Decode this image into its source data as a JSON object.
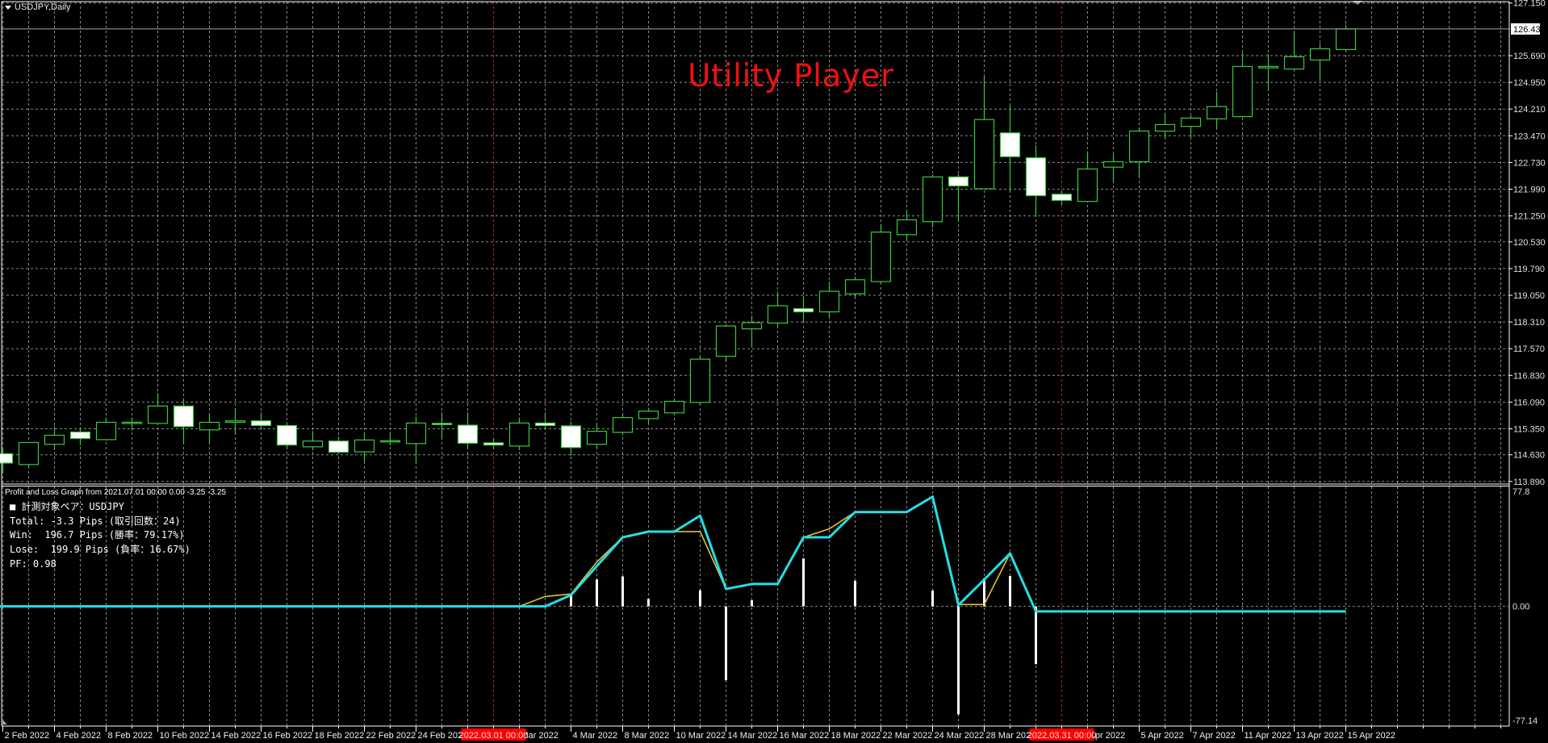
{
  "window": {
    "symbol_title": "USDJPY,Daily",
    "overlay_text": "Utility Player"
  },
  "colors": {
    "background": "#000000",
    "bull_outline": "#3cc83c",
    "bear_fill": "#ffffff",
    "grid": "#8a8a8a",
    "period_separator": "#c02020",
    "pnl_line": "#22e0e6",
    "pnl_line_alt": "#e8c030",
    "pnl_bars": "#ffffff",
    "overlay_text": "#ee1111"
  },
  "pnl_panel": {
    "header": "Profit and Loss Graph from 2021.07.01 00:00 0.00 -3.25 -3.25",
    "lines": [
      "■ 計測対象ペア：USDJPY",
      "Total: -3.3 Pips (取引回数：24)",
      "Win:  196.7 Pips (勝率：79.17%)",
      "Lose:  199.9 Pips (負率：16.67%)",
      "PF: 0.98"
    ]
  },
  "chart_data": [
    {
      "type": "candlestick",
      "symbol": "USDJPY",
      "timeframe": "Daily",
      "ylim": [
        113.89,
        127.15
      ],
      "y_ticks": [
        "127.150",
        "125.690",
        "124.950",
        "124.210",
        "123.470",
        "122.730",
        "121.990",
        "121.250",
        "120.530",
        "119.790",
        "119.050",
        "118.310",
        "117.570",
        "116.830",
        "116.090",
        "115.350",
        "114.630",
        "113.890"
      ],
      "current_price": "126.431",
      "period_separators": [
        "2022.03.01 00:00",
        "2022.03.31 00:00"
      ],
      "x_tick_labels": [
        {
          "date": "2022-02-02",
          "label": "2 Feb 2022"
        },
        {
          "date": "2022-02-04",
          "label": "4 Feb 2022"
        },
        {
          "date": "2022-02-08",
          "label": "8 Feb 2022"
        },
        {
          "date": "2022-02-10",
          "label": "10 Feb 2022"
        },
        {
          "date": "2022-02-14",
          "label": "14 Feb 2022"
        },
        {
          "date": "2022-02-16",
          "label": "16 Feb 2022"
        },
        {
          "date": "2022-02-18",
          "label": "18 Feb 2022"
        },
        {
          "date": "2022-02-22",
          "label": "22 Feb 2022"
        },
        {
          "date": "2022-02-24",
          "label": "24 Feb 2022"
        },
        {
          "date": "2022-03-02",
          "label": "Mar 2022"
        },
        {
          "date": "2022-03-04",
          "label": "4 Mar 2022"
        },
        {
          "date": "2022-03-08",
          "label": "8 Mar 2022"
        },
        {
          "date": "2022-03-10",
          "label": "10 Mar 2022"
        },
        {
          "date": "2022-03-14",
          "label": "14 Mar 2022"
        },
        {
          "date": "2022-03-16",
          "label": "16 Mar 2022"
        },
        {
          "date": "2022-03-18",
          "label": "18 Mar 2022"
        },
        {
          "date": "2022-03-22",
          "label": "22 Mar 2022"
        },
        {
          "date": "2022-03-24",
          "label": "24 Mar 2022"
        },
        {
          "date": "2022-03-28",
          "label": "28 Mar 2022"
        },
        {
          "date": "2022-04-01",
          "label": "Apr 2022"
        },
        {
          "date": "2022-04-05",
          "label": "5 Apr 2022"
        },
        {
          "date": "2022-04-07",
          "label": "7 Apr 2022"
        },
        {
          "date": "2022-04-11",
          "label": "11 Apr 2022"
        },
        {
          "date": "2022-04-13",
          "label": "13 Apr 2022"
        },
        {
          "date": "2022-04-15",
          "label": "15 Apr 2022"
        }
      ],
      "separator_dates": [
        "2022-03-01",
        "2022-03-31"
      ],
      "candles_fields": [
        "date",
        "open",
        "high",
        "low",
        "close"
      ],
      "candles": [
        [
          "2022-02-02",
          114.66,
          114.8,
          114.11,
          114.4
        ],
        [
          "2022-02-03",
          114.36,
          114.97,
          114.27,
          114.97
        ],
        [
          "2022-02-04",
          114.92,
          115.42,
          114.76,
          115.17
        ],
        [
          "2022-02-07",
          115.26,
          115.39,
          114.89,
          115.08
        ],
        [
          "2022-02-08",
          115.05,
          115.66,
          115.02,
          115.53
        ],
        [
          "2022-02-09",
          115.52,
          115.66,
          115.3,
          115.53
        ],
        [
          "2022-02-10",
          115.5,
          116.34,
          115.45,
          115.98
        ],
        [
          "2022-02-11",
          115.98,
          116.2,
          114.95,
          115.41
        ],
        [
          "2022-02-14",
          115.32,
          115.79,
          114.95,
          115.53
        ],
        [
          "2022-02-15",
          115.53,
          115.92,
          115.21,
          115.57
        ],
        [
          "2022-02-16",
          115.57,
          115.8,
          115.34,
          115.44
        ],
        [
          "2022-02-17",
          115.44,
          115.53,
          114.81,
          114.9
        ],
        [
          "2022-02-18",
          114.85,
          115.29,
          114.75,
          115.01
        ],
        [
          "2022-02-21",
          115.01,
          115.13,
          114.67,
          114.7
        ],
        [
          "2022-02-22",
          114.71,
          115.26,
          114.42,
          115.04
        ],
        [
          "2022-02-23",
          115.02,
          115.26,
          114.89,
          115.02
        ],
        [
          "2022-02-24",
          114.94,
          115.69,
          114.38,
          115.51
        ],
        [
          "2022-02-25",
          115.5,
          115.8,
          115.07,
          115.49
        ],
        [
          "2022-02-28",
          115.45,
          115.8,
          114.8,
          114.95
        ],
        [
          "2022-03-01",
          114.96,
          115.08,
          114.78,
          114.9
        ],
        [
          "2022-03-02",
          114.87,
          115.66,
          114.76,
          115.51
        ],
        [
          "2022-03-03",
          115.51,
          115.8,
          115.34,
          115.44
        ],
        [
          "2022-03-04",
          115.43,
          115.55,
          114.61,
          114.83
        ],
        [
          "2022-03-07",
          114.92,
          115.48,
          114.8,
          115.28
        ],
        [
          "2022-03-08",
          115.25,
          115.79,
          115.2,
          115.66
        ],
        [
          "2022-03-09",
          115.63,
          115.93,
          115.48,
          115.84
        ],
        [
          "2022-03-10",
          115.79,
          116.19,
          115.74,
          116.11
        ],
        [
          "2022-03-11",
          116.08,
          117.36,
          116.02,
          117.28
        ],
        [
          "2022-03-14",
          117.36,
          118.24,
          117.23,
          118.2
        ],
        [
          "2022-03-15",
          118.12,
          118.48,
          117.64,
          118.29
        ],
        [
          "2022-03-16",
          118.28,
          119.15,
          118.17,
          118.76
        ],
        [
          "2022-03-17",
          118.68,
          119.04,
          118.32,
          118.59
        ],
        [
          "2022-03-18",
          118.59,
          119.43,
          118.43,
          119.16
        ],
        [
          "2022-03-21",
          119.09,
          119.57,
          118.98,
          119.48
        ],
        [
          "2022-03-22",
          119.43,
          121.03,
          119.4,
          120.8
        ],
        [
          "2022-03-23",
          120.73,
          121.42,
          120.56,
          121.14
        ],
        [
          "2022-03-24",
          121.09,
          122.39,
          120.93,
          122.33
        ],
        [
          "2022-03-25",
          122.33,
          122.41,
          121.12,
          122.08
        ],
        [
          "2022-03-28",
          122.0,
          125.11,
          121.99,
          123.92
        ],
        [
          "2022-03-29",
          123.55,
          124.3,
          121.92,
          122.89
        ],
        [
          "2022-03-30",
          122.86,
          123.21,
          121.26,
          121.81
        ],
        [
          "2022-03-31",
          121.85,
          121.95,
          121.55,
          121.68
        ],
        [
          "2022-04-01",
          121.65,
          123.04,
          121.65,
          122.55
        ],
        [
          "2022-04-04",
          122.6,
          122.96,
          122.2,
          122.75
        ],
        [
          "2022-04-05",
          122.75,
          123.7,
          122.33,
          123.6
        ],
        [
          "2022-04-06",
          123.6,
          124.11,
          123.41,
          123.78
        ],
        [
          "2022-04-07",
          123.73,
          124.03,
          123.41,
          123.96
        ],
        [
          "2022-04-08",
          123.94,
          124.69,
          123.66,
          124.28
        ],
        [
          "2022-04-11",
          124.0,
          125.77,
          124.0,
          125.39
        ],
        [
          "2022-04-12",
          125.35,
          125.74,
          124.74,
          125.39
        ],
        [
          "2022-04-13",
          125.32,
          126.32,
          125.32,
          125.66
        ],
        [
          "2022-04-14",
          125.57,
          126.02,
          125.02,
          125.88
        ],
        [
          "2022-04-15",
          125.86,
          126.55,
          125.86,
          126.43
        ]
      ]
    },
    {
      "type": "line",
      "title": "Profit and Loss Graph from 2021.07.01 00:00 0.00 -3.25 -3.25",
      "ylim": [
        -77.14,
        77.8
      ],
      "y_ticks": [
        "77.8",
        "0.00",
        "-77.14"
      ],
      "x_start": "2022-02-02",
      "series": [
        {
          "role": "cumulative_pips",
          "color": "#22e0e6",
          "values": [
            0,
            0,
            0,
            0,
            0,
            0,
            0,
            0,
            0,
            0,
            0,
            0,
            0,
            0,
            0,
            0,
            0,
            0,
            0,
            0,
            0,
            0,
            7.3,
            26.2,
            44.8,
            48.5,
            48.5,
            58.9,
            11.3,
            14.5,
            14.5,
            44.8,
            44.8,
            61.2,
            61.2,
            61.2,
            71.2,
            0.8,
            17.4,
            34.4,
            -3.3,
            -3.3,
            -3.3,
            -3.3,
            -3.3,
            -3.3,
            -3.3,
            -3.3,
            -3.3,
            -3.3,
            -3.3,
            -3.3,
            -3.3
          ]
        },
        {
          "role": "cumulative_pips_alt",
          "color": "#e8c030",
          "values": [
            0,
            0,
            0,
            0,
            0,
            0,
            0,
            0,
            0,
            0,
            0,
            0,
            0,
            0,
            0,
            0,
            0,
            0,
            0,
            0,
            0,
            6.4,
            8.0,
            28.8,
            44.8,
            48.5,
            48.5,
            48.5,
            11.3,
            14.5,
            14.5,
            44.8,
            50.3,
            61.2,
            61.2,
            61.2,
            71.2,
            1.2,
            1.2,
            34.4,
            -3.3
          ]
        }
      ],
      "bars": {
        "role": "trade_pips",
        "color": "#ffffff",
        "points": [
          [
            "2022-03-04",
            7.0
          ],
          [
            "2022-03-07",
            17.5
          ],
          [
            "2022-03-08",
            19.5
          ],
          [
            "2022-03-09",
            4.9
          ],
          [
            "2022-03-11",
            10.5
          ],
          [
            "2022-03-14",
            -47.9
          ],
          [
            "2022-03-15",
            4.0
          ],
          [
            "2022-03-17",
            31.1
          ],
          [
            "2022-03-21",
            16.6
          ],
          [
            "2022-03-24",
            10.3
          ],
          [
            "2022-03-25",
            -70.1
          ],
          [
            "2022-03-28",
            18.3
          ],
          [
            "2022-03-29",
            19.7
          ],
          [
            "2022-03-30",
            -37.5
          ]
        ]
      }
    }
  ]
}
